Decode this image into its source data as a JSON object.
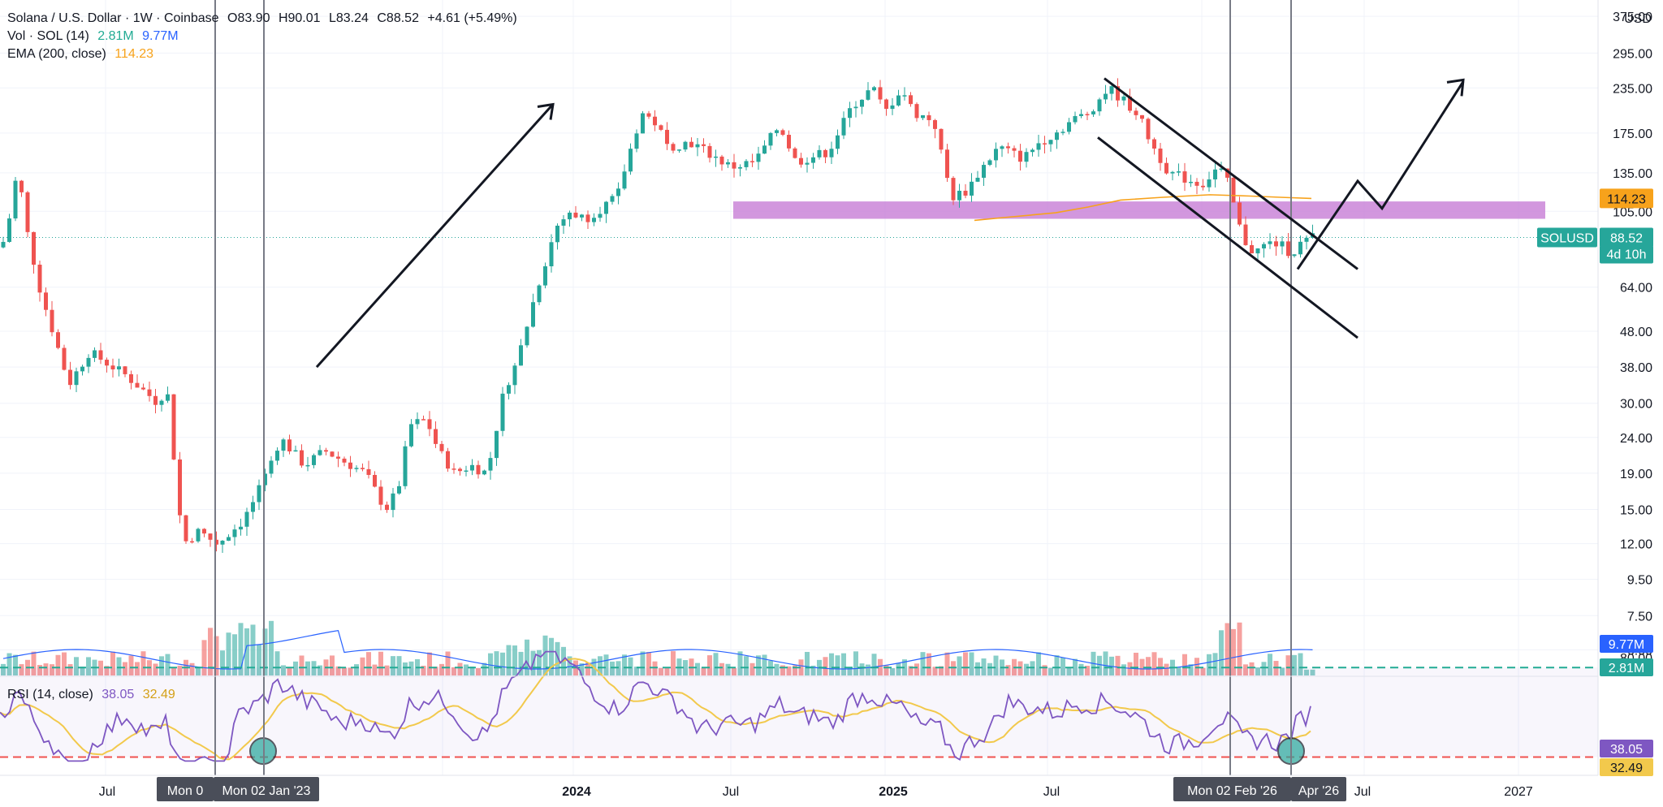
{
  "header": {
    "symbol_title": "Solana / U.S. Dollar · 1W · Coinbase",
    "open": "O83.90",
    "high": "H90.01",
    "low": "L83.24",
    "close": "C88.52",
    "change": "+4.61 (+5.49%)",
    "vol_label": "Vol · SOL (14)",
    "vol_value": "2.81M",
    "vol_ma": "9.77M",
    "ema_label": "EMA (200, close)",
    "ema_value": "114.23",
    "rsi_label": "RSI (14, close)",
    "rsi_value": "38.05",
    "rsi_ma": "32.49",
    "currency": "USD"
  },
  "colors": {
    "up": "#26a69a",
    "down": "#ef5350",
    "ema": "#f7a21b",
    "vol_ma": "#2962ff",
    "rsi": "#7e57c2",
    "rsi_ma": "#f2c94c",
    "zone": "#c77dd6",
    "text_green": "#22ab94",
    "text_blue": "#2962ff",
    "text_orange": "#f7a21b"
  },
  "chart_data": {
    "type": "candlestick",
    "scale": "log",
    "price_ticks": [
      "375.00",
      "295.00",
      "235.00",
      "175.00",
      "135.00",
      "105.00",
      "64.00",
      "48.00",
      "38.00",
      "30.00",
      "24.00",
      "19.00",
      "15.00",
      "12.00",
      "9.50",
      "7.50",
      "6.00"
    ],
    "x_ticks": [
      "Jul",
      "2024",
      "Jul",
      "2025",
      "Jul",
      "Jul",
      "2027"
    ],
    "x_bold": [
      "2024",
      "2025"
    ],
    "crosshair_labels": [
      "Mon 0",
      "Mon 02 Jan '23",
      "Mon 02 Feb '26",
      "Apr '26"
    ],
    "price_badges": [
      {
        "text": "114.23",
        "color": "#f7a21b",
        "value": 114.23
      },
      {
        "text": "SOLUSD",
        "color": "#26a69a",
        "value": 88.52
      },
      {
        "text": "88.52",
        "color": "#26a69a",
        "value": 88.52
      },
      {
        "text": "4d 10h",
        "color": "#26a69a",
        "value": 88.52
      }
    ],
    "vol_badges": [
      {
        "text": "9.77M",
        "color": "#2962ff"
      },
      {
        "text": "2.81M",
        "color": "#26a69a"
      }
    ],
    "rsi_ticks": [
      "80.00"
    ],
    "rsi_badges": [
      {
        "text": "38.05",
        "color": "#7e57c2"
      },
      {
        "text": "32.49",
        "color": "#f2c94c"
      }
    ],
    "rsi_levels": [
      75,
      30
    ],
    "zone": {
      "low": 100,
      "high": 112
    },
    "price_keypoints": [
      [
        0,
        80
      ],
      [
        10,
        96
      ],
      [
        22,
        140
      ],
      [
        32,
        95
      ],
      [
        50,
        62
      ],
      [
        65,
        48
      ],
      [
        85,
        34
      ],
      [
        110,
        42
      ],
      [
        155,
        36
      ],
      [
        195,
        30
      ],
      [
        205,
        34
      ],
      [
        225,
        12
      ],
      [
        245,
        13
      ],
      [
        268,
        12
      ],
      [
        300,
        14
      ],
      [
        330,
        19
      ],
      [
        345,
        24
      ],
      [
        375,
        20
      ],
      [
        400,
        22
      ],
      [
        450,
        19
      ],
      [
        475,
        15
      ],
      [
        490,
        17
      ],
      [
        505,
        26
      ],
      [
        525,
        27
      ],
      [
        540,
        22
      ],
      [
        560,
        19
      ],
      [
        580,
        20
      ],
      [
        600,
        19
      ],
      [
        620,
        32
      ],
      [
        640,
        42
      ],
      [
        660,
        62
      ],
      [
        685,
        95
      ],
      [
        702,
        105
      ],
      [
        720,
        100
      ],
      [
        760,
        115
      ],
      [
        770,
        140
      ],
      [
        790,
        200
      ],
      [
        810,
        185
      ],
      [
        820,
        160
      ],
      [
        850,
        165
      ],
      [
        880,
        150
      ],
      [
        900,
        140
      ],
      [
        930,
        145
      ],
      [
        960,
        185
      ],
      [
        980,
        145
      ],
      [
        1000,
        150
      ],
      [
        1020,
        155
      ],
      [
        1050,
        210
      ],
      [
        1075,
        235
      ],
      [
        1090,
        200
      ],
      [
        1110,
        235
      ],
      [
        1125,
        200
      ],
      [
        1150,
        190
      ],
      [
        1160,
        150
      ],
      [
        1172,
        115
      ],
      [
        1190,
        120
      ],
      [
        1210,
        140
      ],
      [
        1230,
        160
      ],
      [
        1260,
        148
      ],
      [
        1280,
        165
      ],
      [
        1300,
        175
      ],
      [
        1320,
        190
      ],
      [
        1340,
        200
      ],
      [
        1365,
        235
      ],
      [
        1380,
        220
      ],
      [
        1400,
        200
      ],
      [
        1420,
        160
      ],
      [
        1440,
        135
      ],
      [
        1460,
        130
      ],
      [
        1480,
        125
      ],
      [
        1500,
        140
      ],
      [
        1510,
        130
      ],
      [
        1520,
        108
      ],
      [
        1530,
        88
      ],
      [
        1545,
        80
      ],
      [
        1560,
        85
      ],
      [
        1575,
        85
      ],
      [
        1590,
        80
      ],
      [
        1605,
        86
      ],
      [
        1617,
        88.52
      ]
    ],
    "ema_points": [
      [
        1200,
        99
      ],
      [
        1240,
        101
      ],
      [
        1300,
        104
      ],
      [
        1340,
        108
      ],
      [
        1380,
        113
      ],
      [
        1430,
        115
      ],
      [
        1490,
        117
      ],
      [
        1540,
        116
      ],
      [
        1580,
        115
      ],
      [
        1615,
        114.23
      ]
    ],
    "annotations": [
      {
        "type": "arrow",
        "from_price": 38,
        "to_price": 210,
        "from_x": 390,
        "to_x": 680
      },
      {
        "type": "channel_top",
        "from_price": 245,
        "to_price": 72
      },
      {
        "type": "channel_bottom",
        "from_price": 170,
        "to_price": 46
      },
      {
        "type": "projection",
        "points": [
          [
            1598,
            72
          ],
          [
            1672,
            128
          ],
          [
            1702,
            107
          ],
          [
            1802,
            245
          ]
        ]
      }
    ]
  }
}
